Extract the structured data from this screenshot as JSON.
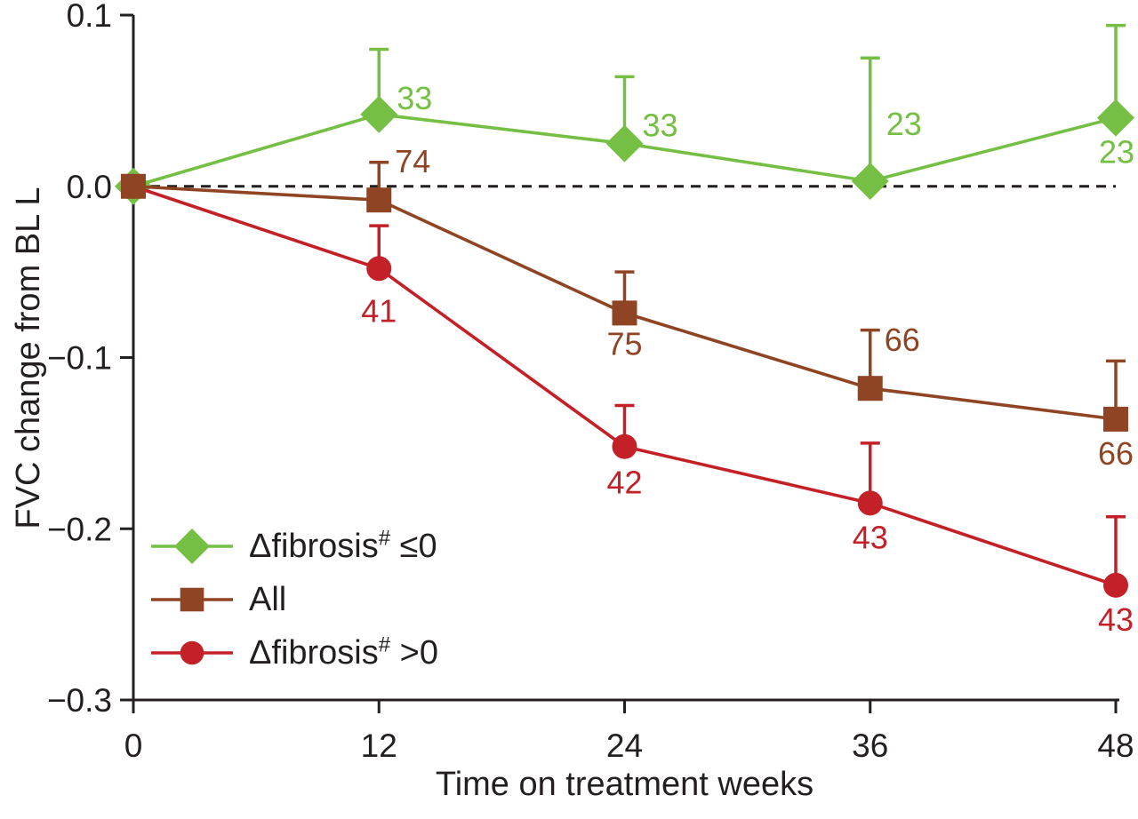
{
  "figure": {
    "background": "#ffffff",
    "text_color": "#231F20",
    "axis_color": "#231F20"
  },
  "chart_data": {
    "type": "line",
    "title": "",
    "xlabel": "Time on treatment weeks",
    "ylabel": "FVC change from BL L",
    "x": [
      0,
      12,
      24,
      36,
      48
    ],
    "xlim": [
      0,
      48
    ],
    "ylim": [
      -0.3,
      0.1
    ],
    "xticks": [
      0,
      12,
      24,
      36,
      48
    ],
    "yticks": [
      "0.1",
      "0.0",
      "−0.1",
      "−0.2",
      "−0.3"
    ],
    "ytick_values": [
      0.1,
      0.0,
      -0.1,
      -0.2,
      -0.3
    ],
    "grid": false,
    "zero_line": {
      "style": "dashed",
      "color": "#231F20",
      "value": 0.0
    },
    "error_bars": "upper-only",
    "series": [
      {
        "id": "fibrosis-le0",
        "name": "Δfibrosis# ≤0",
        "marker": "diamond",
        "color": "#74BF44",
        "values": [
          0.0,
          0.042,
          0.025,
          0.003,
          0.04
        ],
        "err_upper": [
          null,
          0.08,
          0.064,
          0.075,
          0.094
        ],
        "n_labels": [
          null,
          "33",
          "33",
          "23",
          "23"
        ],
        "label_offsets": [
          [
            0,
            0
          ],
          [
            20,
            -6
          ],
          [
            20,
            -8
          ],
          [
            18,
            -52
          ],
          [
            -19,
            51
          ]
        ],
        "label_anchors": [
          null,
          "start",
          "start",
          "start",
          "start"
        ]
      },
      {
        "id": "all",
        "name": "All",
        "marker": "square",
        "color": "#8F4523",
        "values": [
          0.0,
          -0.008,
          -0.074,
          -0.118,
          -0.136
        ],
        "err_upper": [
          null,
          0.014,
          -0.05,
          -0.084,
          -0.102
        ],
        "n_labels": [
          null,
          "74",
          "75",
          "66",
          "66"
        ],
        "label_offsets": [
          [
            0,
            0
          ],
          [
            18,
            -31
          ],
          [
            0,
            47
          ],
          [
            16,
            -42
          ],
          [
            0,
            51
          ]
        ],
        "label_anchors": [
          null,
          "start",
          "middle",
          "start",
          "middle"
        ]
      },
      {
        "id": "fibrosis-gt0",
        "name": "Δfibrosis# >0",
        "marker": "circle",
        "color": "#C32127",
        "values": [
          0.0,
          -0.048,
          -0.152,
          -0.185,
          -0.233
        ],
        "err_upper": [
          null,
          -0.023,
          -0.128,
          -0.15,
          -0.193
        ],
        "n_labels": [
          null,
          "41",
          "42",
          "43",
          "43"
        ],
        "label_offsets": [
          [
            0,
            0
          ],
          [
            0,
            60
          ],
          [
            0,
            53
          ],
          [
            0,
            51
          ],
          [
            0,
            51
          ]
        ],
        "label_anchors": [
          null,
          "middle",
          "middle",
          "middle",
          "middle"
        ]
      }
    ],
    "legend": [
      {
        "prefix": "Δfibrosis",
        "sup": "#",
        "suffix": " ≤0",
        "marker": "diamond",
        "color": "#74BF44"
      },
      {
        "prefix": "All",
        "sup": "",
        "suffix": "",
        "marker": "square",
        "color": "#8F4523"
      },
      {
        "prefix": "Δfibrosis",
        "sup": "#",
        "suffix": " >0",
        "marker": "circle",
        "color": "#C32127"
      }
    ],
    "legend_position": "lower-left"
  }
}
